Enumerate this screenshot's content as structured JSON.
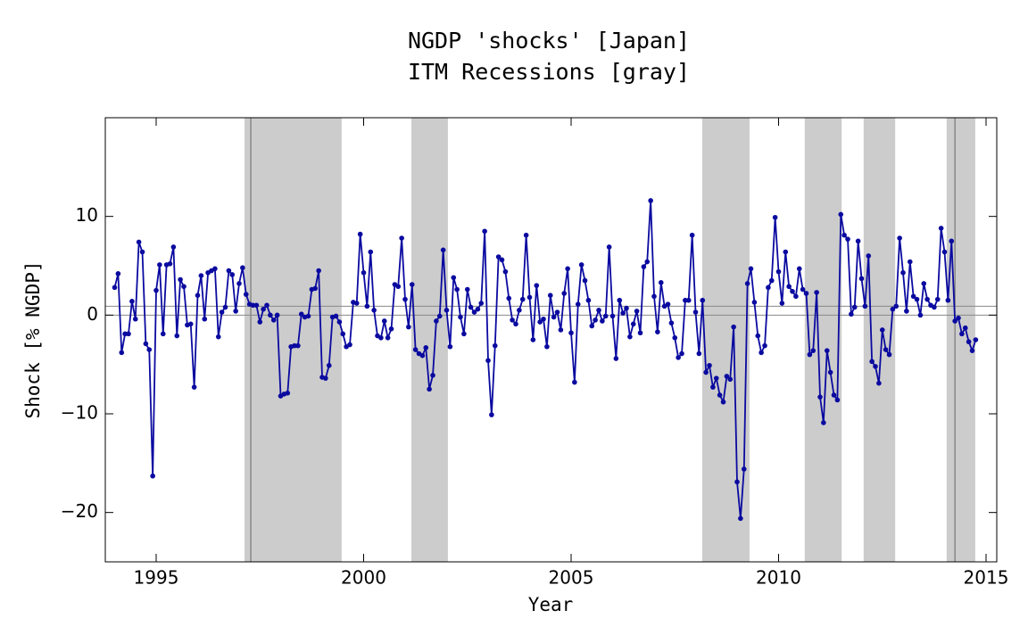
{
  "chart_data": {
    "type": "line",
    "title": "NGDP 'shocks' [Japan]",
    "subtitle": "ITM Recessions [gray]",
    "x_label": "Year",
    "y_label": "Shock [% NGDP]",
    "xlim": [
      1993.774,
      2015.258
    ],
    "ylim": [
      -25,
      20
    ],
    "xticks": [
      1995,
      2000,
      2005,
      2010,
      2015
    ],
    "yticks": [
      {
        "value": -20,
        "label": "−20"
      },
      {
        "value": -10,
        "label": "−10"
      },
      0,
      10
    ],
    "recessions": [
      [
        1997.13,
        1999.47
      ],
      [
        2001.15,
        2002.03
      ],
      [
        2008.16,
        2009.3
      ],
      [
        2010.63,
        2011.52
      ],
      [
        2012.05,
        2012.81
      ],
      [
        2014.05,
        2014.74
      ]
    ],
    "recession_color": "#cccccc",
    "event_lines": [
      1997.28,
      2014.25
    ],
    "reference_lines": [
      0,
      0.9
    ],
    "x": [
      1994,
      1994.083,
      1994.167,
      1994.25,
      1994.333,
      1994.417,
      1994.5,
      1994.583,
      1994.667,
      1994.75,
      1994.833,
      1994.917,
      1995,
      1995.083,
      1995.167,
      1995.25,
      1995.333,
      1995.417,
      1995.5,
      1995.583,
      1995.667,
      1995.75,
      1995.833,
      1995.917,
      1996,
      1996.083,
      1996.167,
      1996.25,
      1996.333,
      1996.417,
      1996.5,
      1996.583,
      1996.667,
      1996.75,
      1996.833,
      1996.917,
      1997,
      1997.083,
      1997.167,
      1997.25,
      1997.333,
      1997.417,
      1997.5,
      1997.583,
      1997.667,
      1997.75,
      1997.833,
      1997.917,
      1998,
      1998.083,
      1998.167,
      1998.25,
      1998.333,
      1998.417,
      1998.5,
      1998.583,
      1998.667,
      1998.75,
      1998.833,
      1998.917,
      1999,
      1999.083,
      1999.167,
      1999.25,
      1999.333,
      1999.417,
      1999.5,
      1999.583,
      1999.667,
      1999.75,
      1999.833,
      1999.917,
      2000,
      2000.083,
      2000.167,
      2000.25,
      2000.333,
      2000.417,
      2000.5,
      2000.583,
      2000.667,
      2000.75,
      2000.833,
      2000.917,
      2001,
      2001.083,
      2001.167,
      2001.25,
      2001.333,
      2001.417,
      2001.5,
      2001.583,
      2001.667,
      2001.75,
      2001.833,
      2001.917,
      2002,
      2002.083,
      2002.167,
      2002.25,
      2002.333,
      2002.417,
      2002.5,
      2002.583,
      2002.667,
      2002.75,
      2002.833,
      2002.917,
      2003,
      2003.083,
      2003.167,
      2003.25,
      2003.333,
      2003.417,
      2003.5,
      2003.583,
      2003.667,
      2003.75,
      2003.833,
      2003.917,
      2004,
      2004.083,
      2004.167,
      2004.25,
      2004.333,
      2004.417,
      2004.5,
      2004.583,
      2004.667,
      2004.75,
      2004.833,
      2004.917,
      2005,
      2005.083,
      2005.167,
      2005.25,
      2005.333,
      2005.417,
      2005.5,
      2005.583,
      2005.667,
      2005.75,
      2005.833,
      2005.917,
      2006,
      2006.083,
      2006.167,
      2006.25,
      2006.333,
      2006.417,
      2006.5,
      2006.583,
      2006.667,
      2006.75,
      2006.833,
      2006.917,
      2007,
      2007.083,
      2007.167,
      2007.25,
      2007.333,
      2007.417,
      2007.5,
      2007.583,
      2007.667,
      2007.75,
      2007.833,
      2007.917,
      2008,
      2008.083,
      2008.167,
      2008.25,
      2008.333,
      2008.417,
      2008.5,
      2008.583,
      2008.667,
      2008.75,
      2008.833,
      2008.917,
      2009,
      2009.083,
      2009.167,
      2009.25,
      2009.333,
      2009.417,
      2009.5,
      2009.583,
      2009.667,
      2009.75,
      2009.833,
      2009.917,
      2010,
      2010.083,
      2010.167,
      2010.25,
      2010.333,
      2010.417,
      2010.5,
      2010.583,
      2010.667,
      2010.75,
      2010.833,
      2010.917,
      2011,
      2011.083,
      2011.167,
      2011.25,
      2011.333,
      2011.417,
      2011.5,
      2011.583,
      2011.667,
      2011.75,
      2011.833,
      2011.917,
      2012,
      2012.083,
      2012.167,
      2012.25,
      2012.333,
      2012.417,
      2012.5,
      2012.583,
      2012.667,
      2012.75,
      2012.833,
      2012.917,
      2013,
      2013.083,
      2013.167,
      2013.25,
      2013.333,
      2013.417,
      2013.5,
      2013.583,
      2013.667,
      2013.75,
      2013.833,
      2013.917,
      2014,
      2014.083,
      2014.167,
      2014.25,
      2014.333,
      2014.417,
      2014.5,
      2014.583,
      2014.667,
      2014.75
    ],
    "series": [
      {
        "color": "#0a0aa0",
        "values": [
          2.8,
          4.2,
          -3.8,
          -1.9,
          -1.9,
          1.4,
          -0.4,
          7.4,
          6.4,
          -2.9,
          -3.5,
          -16.3,
          2.5,
          5.1,
          -1.9,
          5.1,
          5.2,
          6.9,
          -2.1,
          3.6,
          2.9,
          -1.0,
          -0.9,
          -7.3,
          2.0,
          4.0,
          -0.4,
          4.3,
          4.5,
          4.7,
          -2.2,
          0.3,
          0.8,
          4.5,
          4.1,
          0.4,
          3.2,
          4.8,
          2.1,
          1.1,
          1.0,
          1.0,
          -0.7,
          0.6,
          1.0,
          0.0,
          -0.5,
          0.0,
          -8.2,
          -8.0,
          -7.9,
          -3.2,
          -3.1,
          -3.1,
          0.1,
          -0.2,
          -0.1,
          2.6,
          2.7,
          4.5,
          -6.3,
          -6.4,
          -5.1,
          -0.2,
          -0.1,
          -0.7,
          -1.9,
          -3.2,
          -3.0,
          1.3,
          1.2,
          8.2,
          4.3,
          0.9,
          6.4,
          0.5,
          -2.1,
          -2.3,
          -0.6,
          -2.3,
          -1.4,
          3.1,
          2.9,
          7.8,
          1.6,
          -1.2,
          3.1,
          -3.5,
          -3.9,
          -4.1,
          -3.3,
          -7.5,
          -6.1,
          -0.6,
          -0.1,
          6.6,
          0.5,
          -3.2,
          3.8,
          2.6,
          -0.2,
          -1.9,
          2.6,
          0.8,
          0.3,
          0.6,
          1.2,
          8.5,
          -4.6,
          -10.1,
          -3.1,
          5.9,
          5.6,
          4.4,
          1.7,
          -0.5,
          -0.9,
          0.5,
          1.6,
          8.1,
          1.8,
          -2.5,
          3.0,
          -0.7,
          -0.4,
          -3.2,
          2.0,
          -0.2,
          0.3,
          -1.5,
          2.2,
          4.7,
          -1.8,
          -6.8,
          1.1,
          5.1,
          3.5,
          1.5,
          -1.1,
          -0.5,
          0.5,
          -0.6,
          -0.1,
          6.9,
          -0.1,
          -4.4,
          1.5,
          0.2,
          0.7,
          -2.2,
          -0.9,
          0.4,
          -1.8,
          4.9,
          5.4,
          11.6,
          1.9,
          -1.7,
          3.3,
          0.9,
          1.1,
          -0.8,
          -2.3,
          -4.3,
          -3.9,
          1.5,
          1.5,
          8.1,
          0.3,
          -3.9,
          1.5,
          -5.8,
          -5.1,
          -7.3,
          -6.4,
          -8.1,
          -8.8,
          -6.2,
          -6.5,
          -1.2,
          -16.9,
          -20.6,
          -15.6,
          3.2,
          4.7,
          1.3,
          -2.1,
          -3.8,
          -3.1,
          2.8,
          3.5,
          9.9,
          4.4,
          1.2,
          6.4,
          2.9,
          2.4,
          1.9,
          4.7,
          2.6,
          2.2,
          -4.0,
          -3.6,
          2.3,
          -8.3,
          -10.9,
          -3.6,
          -5.8,
          -8.1,
          -8.6,
          10.2,
          8.1,
          7.7,
          0.1,
          0.8,
          7.5,
          3.7,
          0.9,
          6.0,
          -4.7,
          -5.2,
          -6.9,
          -1.5,
          -3.5,
          -4.0,
          0.6,
          0.9,
          7.8,
          4.3,
          0.4,
          5.4,
          1.9,
          1.6,
          0.0,
          3.2,
          1.6,
          1.0,
          0.8,
          1.6,
          8.8,
          6.4,
          1.5,
          7.5,
          -0.6,
          -0.3,
          -1.9,
          -1.3,
          -2.7,
          -3.6,
          -2.5
        ]
      }
    ]
  }
}
